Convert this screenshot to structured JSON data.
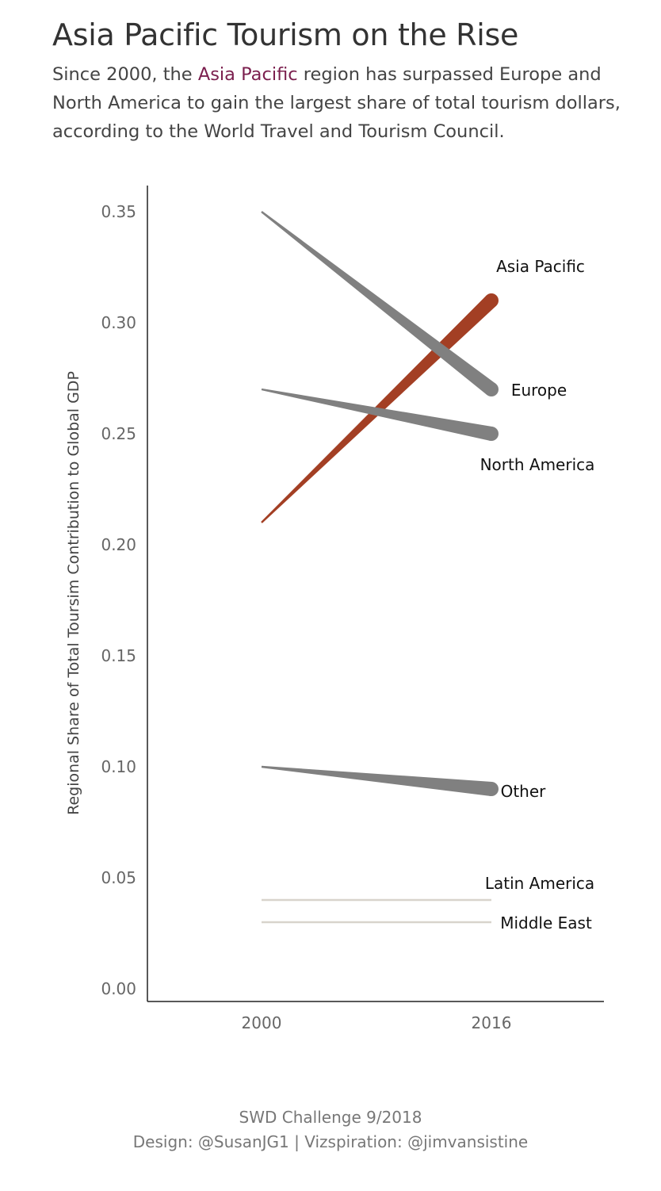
{
  "header": {
    "title": "Asia Pacific Tourism on the Rise",
    "subtitle_before": "Since 2000, the ",
    "subtitle_highlight": "Asia Pacific",
    "subtitle_after": " region has surpassed Europe and North America to gain the largest share of total tourism dollars, according to the World Travel and Tourism Council."
  },
  "chart_data": {
    "type": "line",
    "categories": [
      "2000",
      "2016"
    ],
    "ylabel": "Regional Share of Total Toursim Contribution to Global GDP",
    "xlabel": "",
    "ylim": [
      0,
      0.36
    ],
    "yticks": [
      "0.00",
      "0.05",
      "0.10",
      "0.15",
      "0.20",
      "0.25",
      "0.30",
      "0.35"
    ],
    "grid": false,
    "series": [
      {
        "name": "Asia Pacific",
        "values": [
          0.21,
          0.31
        ],
        "color": "#a33f24",
        "style": "tapered"
      },
      {
        "name": "Europe",
        "values": [
          0.35,
          0.27
        ],
        "color": "#808080",
        "style": "tapered"
      },
      {
        "name": "North America",
        "values": [
          0.27,
          0.25
        ],
        "color": "#808080",
        "style": "tapered"
      },
      {
        "name": "Other",
        "values": [
          0.1,
          0.09
        ],
        "color": "#808080",
        "style": "tapered"
      },
      {
        "name": "Latin America",
        "values": [
          0.04,
          0.04
        ],
        "color": "#d8d4cc",
        "style": "thin"
      },
      {
        "name": "Middle East",
        "values": [
          0.03,
          0.03
        ],
        "color": "#d8d4cc",
        "style": "thin"
      }
    ]
  },
  "footer": {
    "line1": "SWD Challenge 9/2018",
    "line2": "Design: @SusanJG1 | Vizspiration: @jimvansistine"
  }
}
